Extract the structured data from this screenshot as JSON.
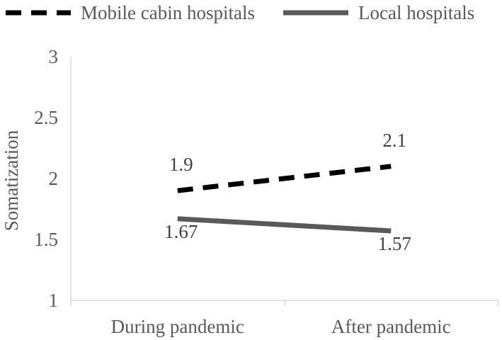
{
  "chart_data": {
    "type": "line",
    "categories": [
      "During pandemic",
      "After pandemic"
    ],
    "series": [
      {
        "name": "Mobile cabin hospitals",
        "values": [
          1.9,
          2.1
        ],
        "labels": [
          "1.9",
          "2.1"
        ],
        "color": "#000000",
        "style": "dashed"
      },
      {
        "name": "Local hospitals",
        "values": [
          1.67,
          1.57
        ],
        "labels": [
          "1.67",
          "1.57"
        ],
        "color": "#595959",
        "style": "solid"
      }
    ],
    "title": "",
    "xlabel": "",
    "ylabel": "Somatization",
    "ylim": [
      1,
      3
    ],
    "yticks": [
      1,
      1.5,
      2,
      2.5,
      3
    ],
    "ytick_labels": [
      "1",
      "1.5",
      "2",
      "2.5",
      "3"
    ],
    "grid": false,
    "legend_position": "top"
  }
}
